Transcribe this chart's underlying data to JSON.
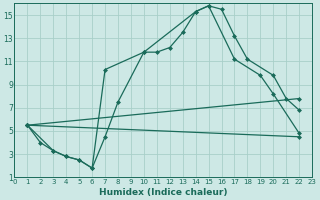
{
  "xlabel": "Humidex (Indice chaleur)",
  "bg_color": "#cde8e5",
  "grid_color": "#a8cfc9",
  "line_color": "#1a6b5a",
  "xlim": [
    0,
    23
  ],
  "ylim": [
    1,
    16
  ],
  "xticks": [
    0,
    1,
    2,
    3,
    4,
    5,
    6,
    7,
    8,
    9,
    10,
    11,
    12,
    13,
    14,
    15,
    16,
    17,
    18,
    19,
    20,
    21,
    22,
    23
  ],
  "yticks": [
    1,
    3,
    5,
    7,
    9,
    11,
    13,
    15
  ],
  "lines": [
    {
      "x": [
        1,
        2,
        3,
        4,
        5,
        6,
        7,
        8,
        10,
        11,
        12,
        13,
        14,
        15,
        16,
        17,
        18,
        20,
        21,
        22
      ],
      "y": [
        5.5,
        4.0,
        3.3,
        2.8,
        2.5,
        1.8,
        4.5,
        7.5,
        11.8,
        11.8,
        12.2,
        13.5,
        15.3,
        15.8,
        15.5,
        13.2,
        11.2,
        9.8,
        7.8,
        6.8
      ],
      "marker": true,
      "linestyle": "solid"
    },
    {
      "x": [
        1,
        3,
        4,
        5,
        6,
        7,
        10,
        14,
        15,
        17,
        19,
        20,
        22
      ],
      "y": [
        5.5,
        3.3,
        2.8,
        2.5,
        1.8,
        10.3,
        11.8,
        15.3,
        15.8,
        11.2,
        9.8,
        8.2,
        4.8
      ],
      "marker": true,
      "linestyle": "solid"
    },
    {
      "x": [
        1,
        22
      ],
      "y": [
        5.5,
        7.8
      ],
      "marker": true,
      "linestyle": "solid"
    },
    {
      "x": [
        1,
        22
      ],
      "y": [
        5.5,
        4.5
      ],
      "marker": true,
      "linestyle": "solid"
    }
  ]
}
